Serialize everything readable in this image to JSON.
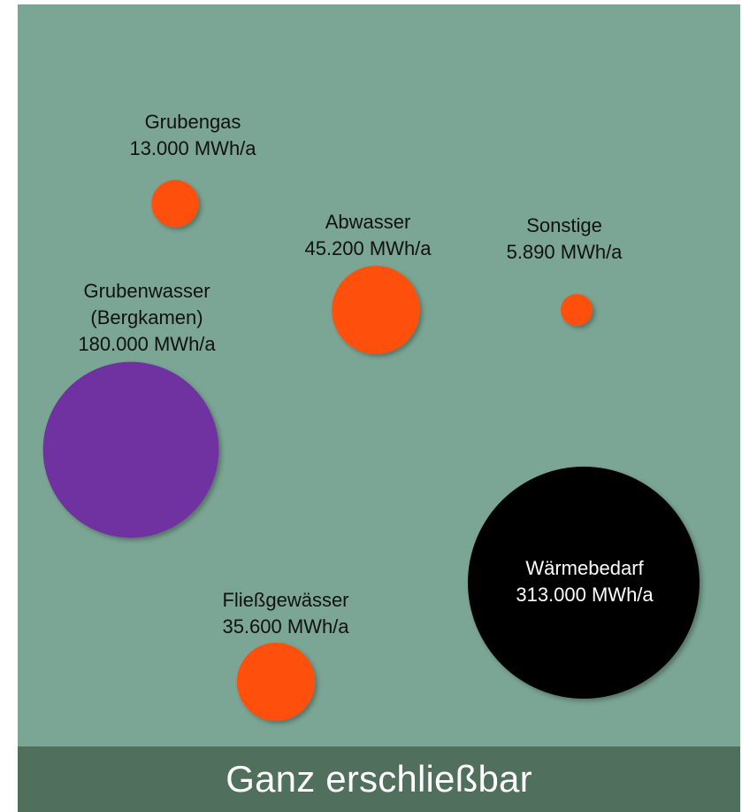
{
  "colors": {
    "panel_background": "#7BA594",
    "footer_background": "#50705D",
    "supply_source": "#FF5007",
    "grubenwasser": "#7030A0",
    "demand": "#000000",
    "label_dark": "#111111",
    "label_light": "#ffffff"
  },
  "footer": {
    "label": "Ganz erschließbar"
  },
  "chart_data": {
    "type": "bubble",
    "unit": "MWh/a",
    "series": [
      {
        "name": "Grubengas",
        "value": 13000,
        "lines": [
          "Grubengas",
          "13.000 MWh/a"
        ],
        "color": "#FF5007"
      },
      {
        "name": "Abwasser",
        "value": 45200,
        "lines": [
          "Abwasser",
          "45.200 MWh/a"
        ],
        "color": "#FF5007"
      },
      {
        "name": "Sonstige",
        "value": 5890,
        "lines": [
          "Sonstige",
          "5.890 MWh/a"
        ],
        "color": "#FF5007"
      },
      {
        "name": "Grubenwasser (Bergkamen)",
        "value": 180000,
        "lines": [
          "Grubenwasser",
          "(Bergkamen)",
          "180.000 MWh/a"
        ],
        "color": "#7030A0"
      },
      {
        "name": "Fließgewässer",
        "value": 35600,
        "lines": [
          "Fließgewässer",
          "35.600 MWh/a"
        ],
        "color": "#FF5007"
      },
      {
        "name": "Wärmebedarf",
        "value": 313000,
        "lines": [
          "Wärmebedarf",
          "313.000 MWh/a"
        ],
        "color": "#000000"
      }
    ]
  }
}
